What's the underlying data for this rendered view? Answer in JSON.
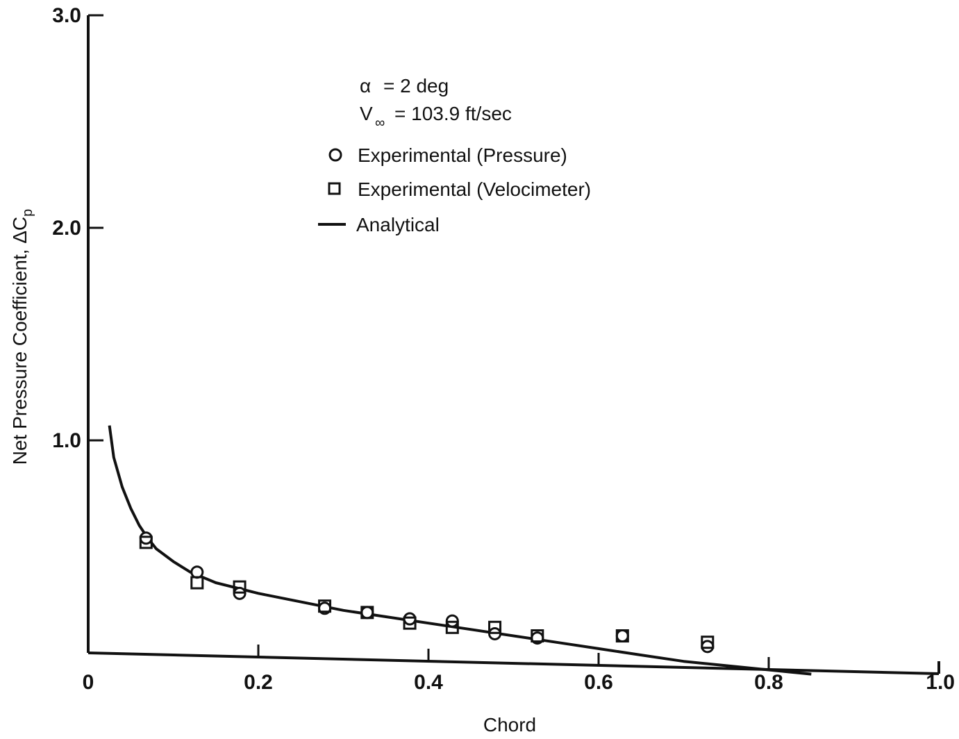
{
  "chart_data": {
    "type": "scatter",
    "title": "",
    "xlabel": "Chord",
    "ylabel": "Net Pressure Coefficient, ΔC",
    "ylabel_subscript": "p",
    "xlim": [
      0,
      1.0
    ],
    "ylim": [
      0,
      3.0
    ],
    "x_ticks": [
      0.2,
      0.4,
      0.6,
      0.8
    ],
    "x_tick_labels": [
      "0",
      "0.2",
      "0.4",
      "0.6",
      "0.8",
      "1.0"
    ],
    "y_ticks": [
      1.0,
      2.0,
      3.0
    ],
    "y_tick_labels": [
      "1.0",
      "2.0",
      "3.0"
    ],
    "annotations": {
      "alpha_label": "α",
      "alpha_value": "= 2 deg",
      "v_label": "V",
      "v_subscript": "∞",
      "v_value": "= 103.9 ft/sec"
    },
    "legend": {
      "placement": "top-center"
    },
    "series": [
      {
        "name": "Experimental (Pressure)",
        "marker": "circle",
        "points": [
          [
            0.068,
            0.54
          ],
          [
            0.128,
            0.38
          ],
          [
            0.178,
            0.28
          ],
          [
            0.278,
            0.21
          ],
          [
            0.328,
            0.19
          ],
          [
            0.378,
            0.16
          ],
          [
            0.428,
            0.15
          ],
          [
            0.478,
            0.09
          ],
          [
            0.528,
            0.07
          ],
          [
            0.628,
            0.08
          ],
          [
            0.728,
            0.03
          ]
        ]
      },
      {
        "name": "Experimental (Velocimeter)",
        "marker": "square",
        "points": [
          [
            0.068,
            0.52
          ],
          [
            0.128,
            0.33
          ],
          [
            0.178,
            0.31
          ],
          [
            0.278,
            0.22
          ],
          [
            0.328,
            0.19
          ],
          [
            0.378,
            0.14
          ],
          [
            0.428,
            0.12
          ],
          [
            0.478,
            0.12
          ],
          [
            0.528,
            0.08
          ],
          [
            0.628,
            0.08
          ],
          [
            0.728,
            0.05
          ]
        ]
      },
      {
        "name": "Analytical",
        "marker": "line",
        "points": [
          [
            0.025,
            1.07
          ],
          [
            0.03,
            0.92
          ],
          [
            0.04,
            0.78
          ],
          [
            0.05,
            0.68
          ],
          [
            0.06,
            0.6
          ],
          [
            0.07,
            0.54
          ],
          [
            0.08,
            0.49
          ],
          [
            0.1,
            0.43
          ],
          [
            0.12,
            0.38
          ],
          [
            0.15,
            0.33
          ],
          [
            0.2,
            0.28
          ],
          [
            0.25,
            0.24
          ],
          [
            0.3,
            0.2
          ],
          [
            0.35,
            0.17
          ],
          [
            0.4,
            0.14
          ],
          [
            0.45,
            0.11
          ],
          [
            0.5,
            0.08
          ],
          [
            0.55,
            0.05
          ],
          [
            0.6,
            0.02
          ],
          [
            0.65,
            -0.01
          ],
          [
            0.7,
            -0.04
          ],
          [
            0.75,
            -0.06
          ],
          [
            0.8,
            -0.08
          ],
          [
            0.85,
            -0.1
          ]
        ]
      }
    ]
  }
}
